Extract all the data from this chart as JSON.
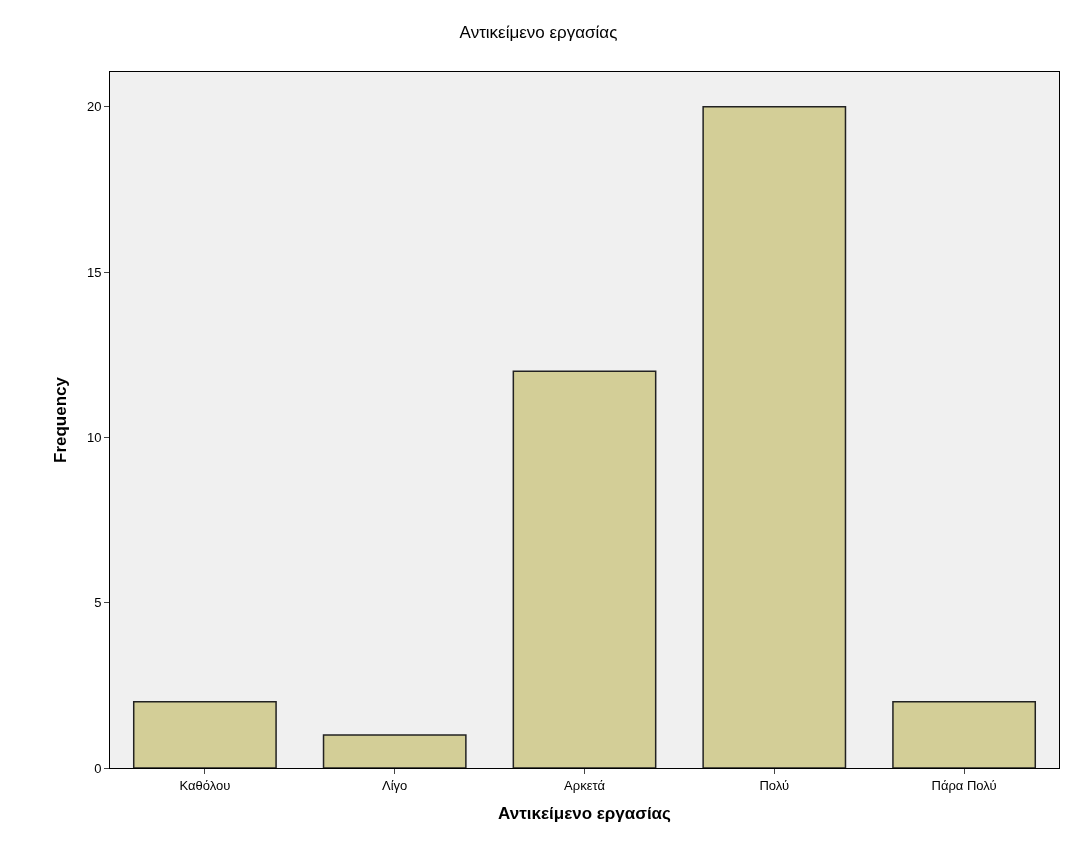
{
  "chart_data": {
    "type": "bar",
    "title": "Αντικείμενο εργασίας",
    "xlabel": "Αντικείμενο εργασίας",
    "ylabel": "Frequency",
    "categories": [
      "Καθόλου",
      "Λίγο",
      "Αρκετά",
      "Πολύ",
      "Πάρα Πολύ"
    ],
    "values": [
      2,
      1,
      12,
      20,
      2
    ],
    "color": "#d3ce97",
    "ylim": [
      0,
      21.05
    ],
    "yticks": [
      0,
      5,
      10,
      15,
      20
    ],
    "grid": false
  }
}
